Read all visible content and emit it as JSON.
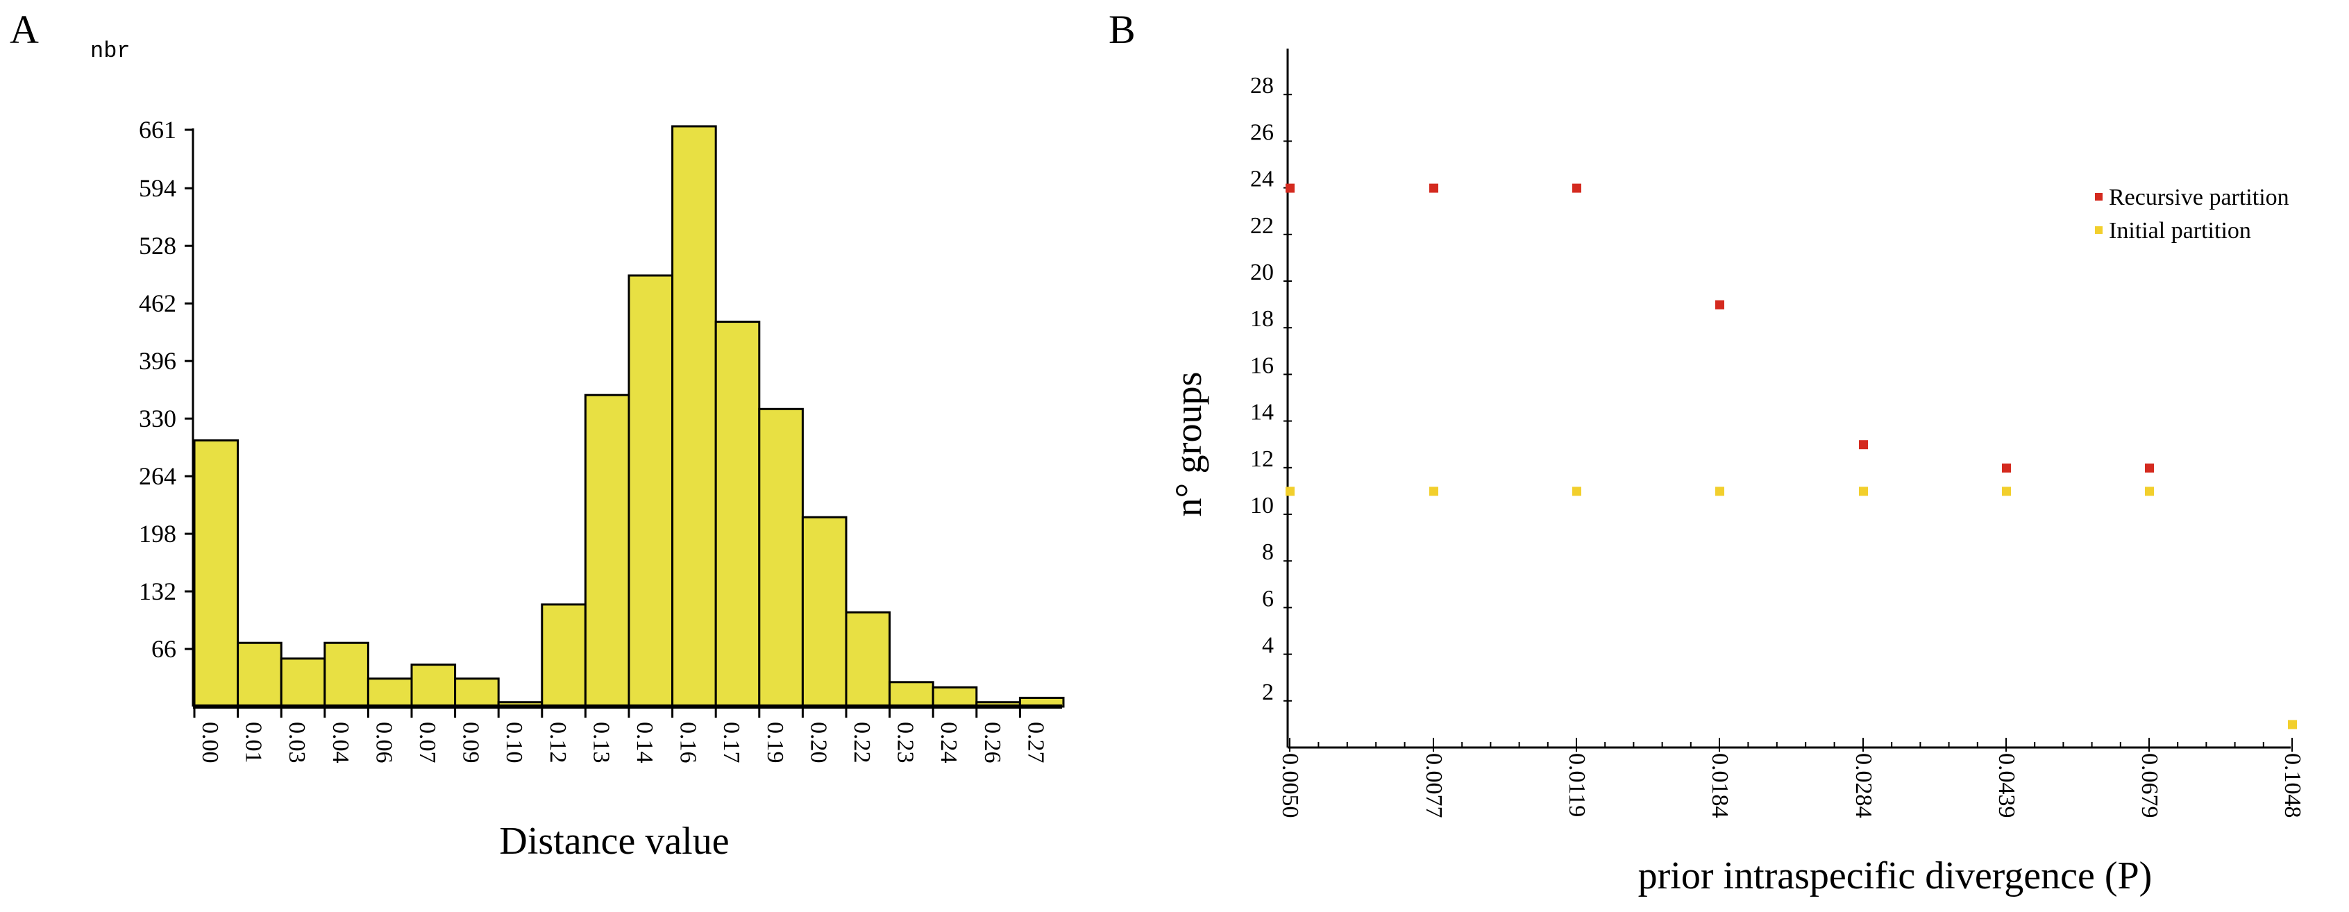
{
  "chart_data": [
    {
      "type": "bar",
      "panel_label": "A",
      "ylabel": "nbr",
      "xlabel": "Distance value",
      "categories": [
        "0.00",
        "0.01",
        "0.03",
        "0.04",
        "0.06",
        "0.07",
        "0.09",
        "0.10",
        "0.12",
        "0.13",
        "0.14",
        "0.16",
        "0.17",
        "0.19",
        "0.20",
        "0.22",
        "0.23",
        "0.24",
        "0.26",
        "0.27"
      ],
      "values": [
        305,
        73,
        55,
        73,
        32,
        48,
        32,
        5,
        117,
        357,
        494,
        665,
        441,
        341,
        217,
        108,
        28,
        22,
        5,
        10
      ],
      "yticks": [
        "66",
        "132",
        "198",
        "264",
        "330",
        "396",
        "462",
        "528",
        "594",
        "661"
      ],
      "ylim": [
        0,
        661
      ],
      "colors": {
        "fill": "#e8e043",
        "stroke": "#000000"
      }
    },
    {
      "type": "scatter",
      "panel_label": "B",
      "ylabel": "n° groups",
      "xlabel": "prior intraspecific divergence (P)",
      "x_categories": [
        "0.0050",
        "0.0077",
        "0.0119",
        "0.0184",
        "0.0284",
        "0.0439",
        "0.0679",
        "0.1048"
      ],
      "yticks": [
        "2",
        "4",
        "6",
        "8",
        "10",
        "12",
        "14",
        "16",
        "18",
        "20",
        "22",
        "24",
        "26",
        "28"
      ],
      "ylim": [
        0,
        30
      ],
      "legend_position": "top-right",
      "series": [
        {
          "name": "Recursive partition",
          "color": "#d42a1f",
          "values": [
            24,
            24,
            24,
            19,
            13,
            12,
            12,
            null
          ]
        },
        {
          "name": "Initial partition",
          "color": "#f2cf2c",
          "values": [
            11,
            11,
            11,
            11,
            11,
            11,
            11,
            1
          ]
        }
      ]
    }
  ]
}
